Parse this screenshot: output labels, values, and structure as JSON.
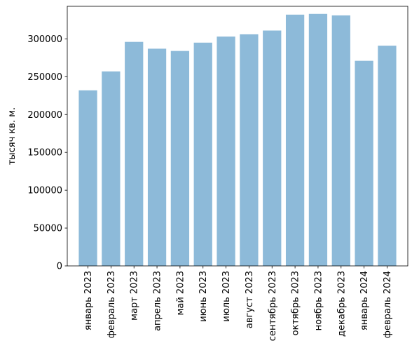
{
  "chart_data": {
    "type": "bar",
    "title": "",
    "xlabel": "",
    "ylabel": "тысяч кв. м.",
    "ylim": [
      0,
      343000
    ],
    "yticks": [
      0,
      50000,
      100000,
      150000,
      200000,
      250000,
      300000
    ],
    "grid": false,
    "bar_color": "#8dbad9",
    "categories": [
      "январь 2023",
      "февраль 2023",
      "март 2023",
      "апрель 2023",
      "май 2023",
      "июнь 2023",
      "июль 2023",
      "август 2023",
      "сентябрь 2023",
      "октябрь 2023",
      "ноябрь 2023",
      "декабрь 2023",
      "январь 2024",
      "февраль 2024"
    ],
    "values": [
      232000,
      257000,
      296000,
      287000,
      284000,
      295000,
      303000,
      306000,
      311000,
      332000,
      333000,
      331000,
      271000,
      291000
    ]
  }
}
